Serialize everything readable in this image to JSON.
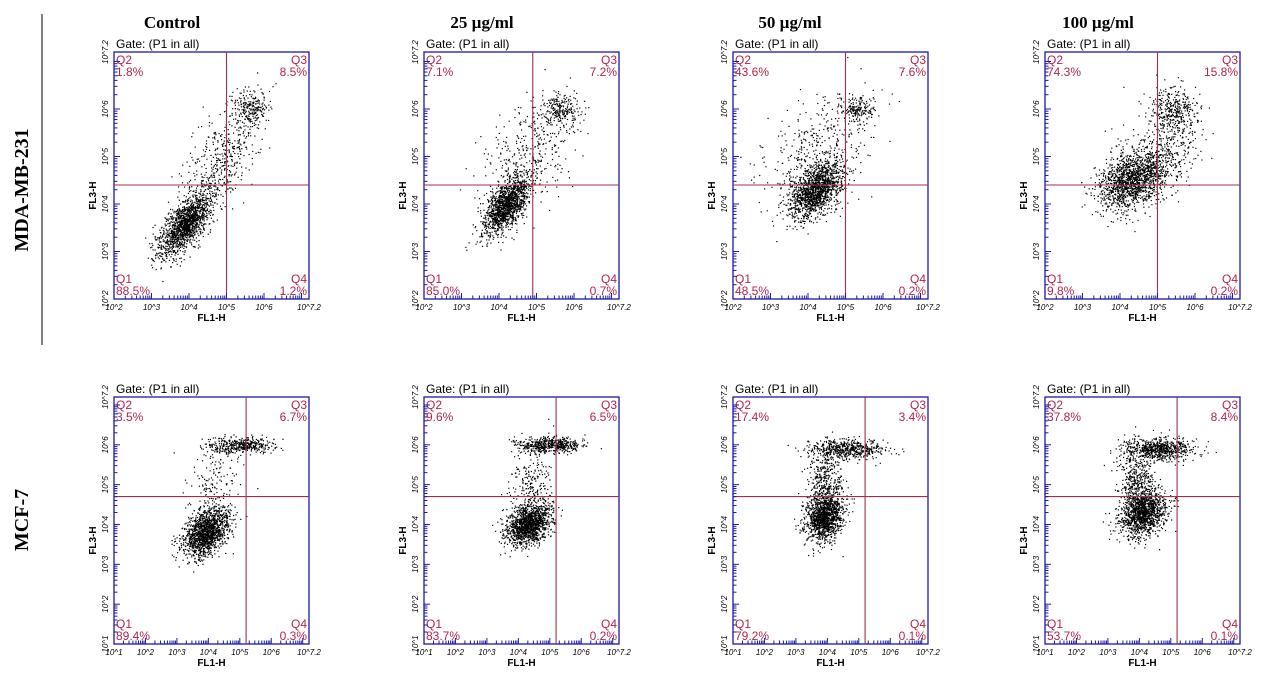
{
  "chart_data": {
    "type": "scatter",
    "description_rows": [
      "MDA-MB-231",
      "MCF-7"
    ],
    "columns": [
      "Control",
      "25 µg/ml",
      "50 µg/ml",
      "100 µg/ml"
    ],
    "xlabel": "FL1-H",
    "ylabel": "FL3-H",
    "gate_label": "Gate: (P1 in all)",
    "log_scale": true,
    "panels": [
      {
        "row": "MDA-MB-231",
        "column": "Control",
        "xlim_log": [
          2,
          7.2
        ],
        "ylim_log": [
          2,
          7.2
        ],
        "x_ticks": [
          "10^2",
          "10^3",
          "10^4",
          "10^5",
          "10^6",
          "10^7.2"
        ],
        "y_ticks": [
          "10^2",
          "10^3",
          "10^4",
          "10^5",
          "10^6",
          "10^7.2"
        ],
        "quadrant_x": 5,
        "quadrant_y": 4.4,
        "quadrants": {
          "Q1": "88.5%",
          "Q2": "1.8%",
          "Q3": "8.5%",
          "Q4": "1.2%"
        },
        "clusters": [
          {
            "cx": 3.9,
            "cy": 3.6,
            "sx": 0.35,
            "sy": 0.35,
            "rho": 0.7,
            "n": 1500
          },
          {
            "cx": 5.6,
            "cy": 6.0,
            "sx": 0.25,
            "sy": 0.18,
            "rho": 0,
            "n": 220
          },
          {
            "cx": 4.9,
            "cy": 5.0,
            "sx": 0.5,
            "sy": 0.55,
            "rho": 0.5,
            "n": 420
          }
        ]
      },
      {
        "row": "MDA-MB-231",
        "column": "25 µg/ml",
        "xlim_log": [
          2,
          7.2
        ],
        "ylim_log": [
          2,
          7.2
        ],
        "x_ticks": [
          "10^2",
          "10^3",
          "10^4",
          "10^5",
          "10^6",
          "10^7.2"
        ],
        "y_ticks": [
          "10^2",
          "10^3",
          "10^4",
          "10^5",
          "10^6",
          "10^7.2"
        ],
        "quadrant_x": 4.9,
        "quadrant_y": 4.4,
        "quadrants": {
          "Q1": "85.0%",
          "Q2": "7.1%",
          "Q3": "7.2%",
          "Q4": "0.7%"
        },
        "clusters": [
          {
            "cx": 4.2,
            "cy": 4.0,
            "sx": 0.3,
            "sy": 0.3,
            "rho": 0.6,
            "n": 1400
          },
          {
            "cx": 5.6,
            "cy": 6.0,
            "sx": 0.25,
            "sy": 0.16,
            "rho": 0,
            "n": 220
          },
          {
            "cx": 4.8,
            "cy": 5.1,
            "sx": 0.6,
            "sy": 0.6,
            "rho": 0.4,
            "n": 380
          }
        ]
      },
      {
        "row": "MDA-MB-231",
        "column": "50 µg/ml",
        "xlim_log": [
          2,
          7.2
        ],
        "ylim_log": [
          2,
          7.2
        ],
        "x_ticks": [
          "10^2",
          "10^3",
          "10^4",
          "10^5",
          "10^6",
          "10^7.2"
        ],
        "y_ticks": [
          "10^2",
          "10^3",
          "10^4",
          "10^5",
          "10^6",
          "10^7.2"
        ],
        "quadrant_x": 5,
        "quadrant_y": 4.4,
        "quadrants": {
          "Q1": "48.5%",
          "Q2": "43.6%",
          "Q3": "7.6%",
          "Q4": "0.2%"
        },
        "clusters": [
          {
            "cx": 4.2,
            "cy": 4.3,
            "sx": 0.35,
            "sy": 0.3,
            "rho": 0.5,
            "n": 1400
          },
          {
            "cx": 5.3,
            "cy": 6.0,
            "sx": 0.22,
            "sy": 0.15,
            "rho": 0,
            "n": 180
          },
          {
            "cx": 4.3,
            "cy": 5.1,
            "sx": 0.7,
            "sy": 0.6,
            "rho": 0.3,
            "n": 420
          }
        ]
      },
      {
        "row": "MDA-MB-231",
        "column": "100 µg/ml",
        "xlim_log": [
          2,
          7.2
        ],
        "ylim_log": [
          2,
          7.2
        ],
        "x_ticks": [
          "10^2",
          "10^3",
          "10^4",
          "10^5",
          "10^6",
          "10^7.2"
        ],
        "y_ticks": [
          "10^2",
          "10^3",
          "10^4",
          "10^5",
          "10^6",
          "10^7.2"
        ],
        "quadrant_x": 5,
        "quadrant_y": 4.4,
        "quadrants": {
          "Q1": "9.8%",
          "Q2": "74.3%",
          "Q3": "15.8%",
          "Q4": "0.2%"
        },
        "clusters": [
          {
            "cx": 4.3,
            "cy": 4.5,
            "sx": 0.45,
            "sy": 0.3,
            "rho": 0.3,
            "n": 1300
          },
          {
            "cx": 5.4,
            "cy": 6.0,
            "sx": 0.3,
            "sy": 0.25,
            "rho": 0,
            "n": 350
          },
          {
            "cx": 5.0,
            "cy": 5.0,
            "sx": 0.5,
            "sy": 0.45,
            "rho": 0.4,
            "n": 500
          }
        ]
      },
      {
        "row": "MCF-7",
        "column": "Control",
        "xlim_log": [
          1,
          7.2
        ],
        "ylim_log": [
          1,
          7.2
        ],
        "x_ticks": [
          "10^1",
          "10^2",
          "10^3",
          "10^4",
          "10^5",
          "10^6",
          "10^7.2"
        ],
        "y_ticks": [
          "10^1",
          "10^2",
          "10^3",
          "10^4",
          "10^5",
          "10^6",
          "10^7.2"
        ],
        "quadrant_x": 5.2,
        "quadrant_y": 4.7,
        "quadrants": {
          "Q1": "89.4%",
          "Q2": "3.5%",
          "Q3": "6.7%",
          "Q4": "0.3%"
        },
        "clusters": [
          {
            "cx": 3.9,
            "cy": 3.8,
            "sx": 0.35,
            "sy": 0.3,
            "rho": 0.4,
            "n": 1500
          },
          {
            "cx": 5.0,
            "cy": 6.0,
            "sx": 0.55,
            "sy": 0.1,
            "rho": 0,
            "n": 420
          },
          {
            "cx": 4.2,
            "cy": 5.0,
            "sx": 0.4,
            "sy": 0.5,
            "rho": 0.2,
            "n": 160
          }
        ]
      },
      {
        "row": "MCF-7",
        "column": "25 µg/ml",
        "xlim_log": [
          1,
          7.2
        ],
        "ylim_log": [
          1,
          7.2
        ],
        "x_ticks": [
          "10^1",
          "10^2",
          "10^3",
          "10^4",
          "10^5",
          "10^6",
          "10^7.2"
        ],
        "y_ticks": [
          "10^1",
          "10^2",
          "10^3",
          "10^4",
          "10^5",
          "10^6",
          "10^7.2"
        ],
        "quadrant_x": 5.2,
        "quadrant_y": 4.7,
        "quadrants": {
          "Q1": "83.7%",
          "Q2": "9.6%",
          "Q3": "6.5%",
          "Q4": "0.2%"
        },
        "clusters": [
          {
            "cx": 4.3,
            "cy": 4.0,
            "sx": 0.35,
            "sy": 0.25,
            "rho": 0.3,
            "n": 1400
          },
          {
            "cx": 5.0,
            "cy": 6.0,
            "sx": 0.55,
            "sy": 0.1,
            "rho": 0,
            "n": 520
          },
          {
            "cx": 4.4,
            "cy": 5.0,
            "sx": 0.35,
            "sy": 0.5,
            "rho": 0.1,
            "n": 220
          }
        ]
      },
      {
        "row": "MCF-7",
        "column": "50 µg/ml",
        "xlim_log": [
          1,
          7.2
        ],
        "ylim_log": [
          1,
          7.2
        ],
        "x_ticks": [
          "10^1",
          "10^2",
          "10^3",
          "10^4",
          "10^5",
          "10^6",
          "10^7.2"
        ],
        "y_ticks": [
          "10^1",
          "10^2",
          "10^3",
          "10^4",
          "10^5",
          "10^6",
          "10^7.2"
        ],
        "quadrant_x": 5.2,
        "quadrant_y": 4.7,
        "quadrants": {
          "Q1": "79.2%",
          "Q2": "17.4%",
          "Q3": "3.4%",
          "Q4": "0.1%"
        },
        "clusters": [
          {
            "cx": 3.9,
            "cy": 4.2,
            "sx": 0.3,
            "sy": 0.3,
            "rho": 0.2,
            "n": 1300
          },
          {
            "cx": 4.6,
            "cy": 5.9,
            "sx": 0.6,
            "sy": 0.12,
            "rho": 0,
            "n": 560
          },
          {
            "cx": 3.9,
            "cy": 5.1,
            "sx": 0.3,
            "sy": 0.4,
            "rho": 0,
            "n": 320
          }
        ]
      },
      {
        "row": "MCF-7",
        "column": "100 µg/ml",
        "xlim_log": [
          1,
          7.2
        ],
        "ylim_log": [
          1,
          7.2
        ],
        "x_ticks": [
          "10^1",
          "10^2",
          "10^3",
          "10^4",
          "10^5",
          "10^6",
          "10^7.2"
        ],
        "y_ticks": [
          "10^1",
          "10^2",
          "10^3",
          "10^4",
          "10^5",
          "10^6",
          "10^7.2"
        ],
        "quadrant_x": 5.2,
        "quadrant_y": 4.7,
        "quadrants": {
          "Q1": "53.7%",
          "Q2": "37.8%",
          "Q3": "8.4%",
          "Q4": "0.1%"
        },
        "clusters": [
          {
            "cx": 4.1,
            "cy": 4.3,
            "sx": 0.35,
            "sy": 0.3,
            "rho": 0.2,
            "n": 1250
          },
          {
            "cx": 4.6,
            "cy": 5.9,
            "sx": 0.55,
            "sy": 0.14,
            "rho": 0,
            "n": 700
          },
          {
            "cx": 3.9,
            "cy": 5.1,
            "sx": 0.3,
            "sy": 0.45,
            "rho": 0,
            "n": 420
          }
        ]
      }
    ]
  },
  "palette": {
    "frame": "#1a1aa8",
    "gate_line": "#a0304a",
    "quadrant_text": "#b0254a",
    "dots": "#000000",
    "background": "#ffffff"
  }
}
